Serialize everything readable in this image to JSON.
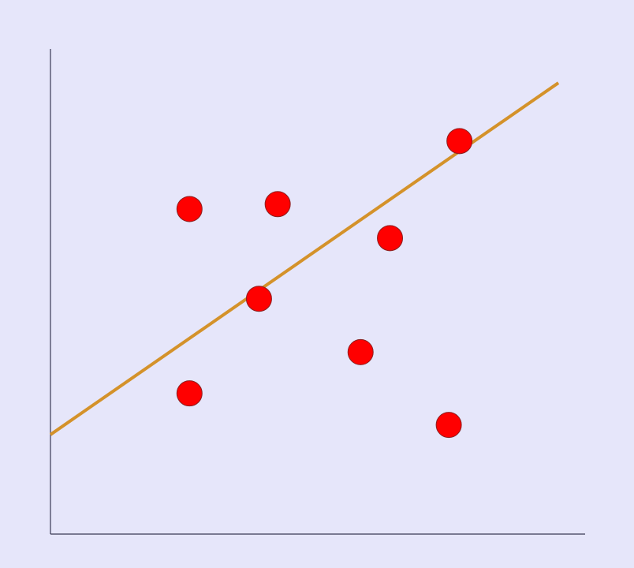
{
  "colors": {
    "background": "#e6e6fa",
    "axis": "#3a3a55",
    "point_fill": "#ff0000",
    "point_stroke": "#8b2020",
    "trend_line": "#d4922a"
  },
  "chart_data": {
    "type": "scatter",
    "title": "",
    "xlabel": "",
    "ylabel": "",
    "grid": false,
    "legend": "none",
    "xlim": [
      0,
      10
    ],
    "ylim": [
      0,
      10
    ],
    "series": [
      {
        "x": [
          2.6,
          2.6,
          3.9,
          4.25,
          5.8,
          6.35,
          7.45,
          7.65
        ],
        "y": [
          2.9,
          6.7,
          4.85,
          6.8,
          3.75,
          6.1,
          2.25,
          8.1
        ]
      }
    ],
    "trend_line": {
      "x": [
        0,
        9.5
      ],
      "y": [
        2.05,
        9.3
      ]
    }
  }
}
